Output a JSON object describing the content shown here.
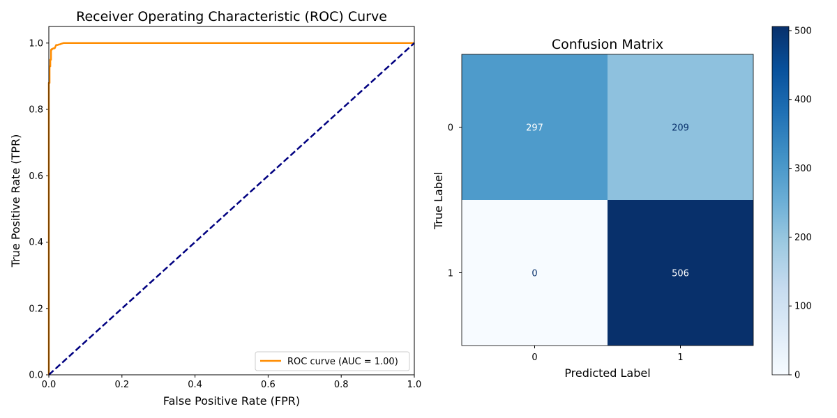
{
  "chart_data": [
    {
      "type": "line",
      "title": "Receiver Operating Characteristic (ROC) Curve",
      "xlabel": "False Positive Rate (FPR)",
      "ylabel": "True Positive Rate (TPR)",
      "xlim": [
        0,
        1
      ],
      "ylim": [
        0,
        1.05
      ],
      "xticks": [
        0,
        0.2,
        0.4,
        0.6,
        0.8,
        1
      ],
      "xtick_labels": [
        "0.0",
        "0.2",
        "0.4",
        "0.6",
        "0.8",
        "1.0"
      ],
      "yticks": [
        0,
        0.2,
        0.4,
        0.6,
        0.8,
        1
      ],
      "ytick_labels": [
        "0.0",
        "0.2",
        "0.4",
        "0.6",
        "0.8",
        "1.0"
      ],
      "legend_position": "lower-right",
      "series": [
        {
          "name": "ROC curve (AUC = 1.00)",
          "color": "#ff8c00",
          "style": "solid",
          "x": [
            0,
            0,
            0.002,
            0.002,
            0.004,
            0.004,
            0.006,
            0.006,
            0.008,
            0.008,
            0.01,
            0.012,
            0.016,
            0.02,
            0.024,
            0.028,
            0.03,
            0.034,
            0.04,
            1
          ],
          "y": [
            0,
            0.88,
            0.88,
            0.93,
            0.93,
            0.95,
            0.95,
            0.98,
            0.98,
            0.982,
            0.982,
            0.984,
            0.984,
            0.994,
            0.994,
            0.996,
            0.996,
            0.998,
            1,
            1
          ]
        },
        {
          "color": "#000080",
          "style": "dashed",
          "x": [
            0,
            1
          ],
          "y": [
            0,
            1
          ]
        }
      ]
    },
    {
      "type": "heatmap",
      "title": "Confusion Matrix",
      "xlabel": "Predicted Label",
      "ylabel": "True Label",
      "x_categories": [
        "0",
        "1"
      ],
      "y_categories": [
        "0",
        "1"
      ],
      "values": [
        [
          297,
          209
        ],
        [
          0,
          506
        ]
      ],
      "colormap": "Blues",
      "colorbar": {
        "min": 0,
        "max": 506,
        "ticks": [
          0,
          100,
          200,
          300,
          400,
          500
        ],
        "tick_labels": [
          "0",
          "100",
          "200",
          "300",
          "400",
          "500"
        ]
      }
    }
  ]
}
